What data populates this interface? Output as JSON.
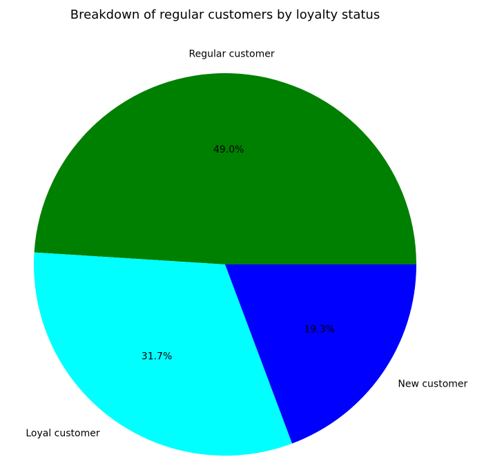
{
  "chart_data": {
    "type": "pie",
    "title": "Breakdown of regular customers by loyalty status",
    "slices": [
      {
        "label": "Regular customer",
        "value": 49.0,
        "pct_text": "49.0%",
        "color": "#008000"
      },
      {
        "label": "Loyal customer",
        "value": 31.7,
        "pct_text": "31.7%",
        "color": "#00ffff"
      },
      {
        "label": "New customer",
        "value": 19.3,
        "pct_text": "19.3%",
        "color": "#0000ff"
      }
    ],
    "start_angle_deg": 0,
    "direction": "counterclockwise",
    "legend": "none"
  }
}
